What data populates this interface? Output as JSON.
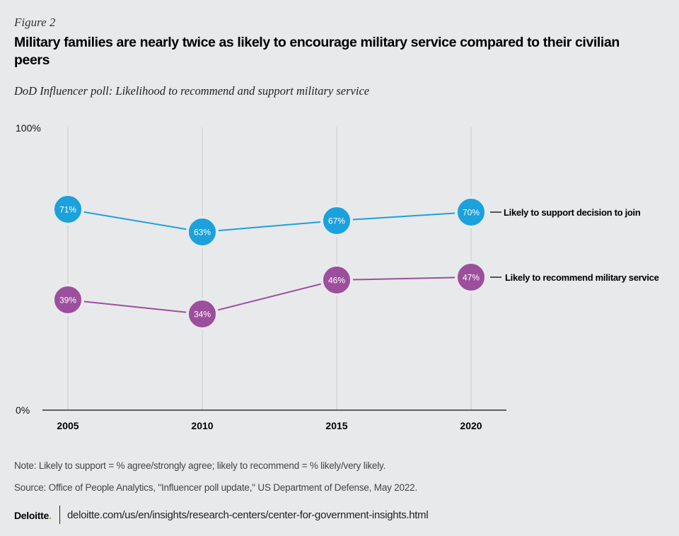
{
  "figure_label": "Figure 2",
  "title": "Military families are nearly twice as likely to encourage military service compared to their civilian peers",
  "subtitle": "DoD Influencer poll: Likelihood to recommend and support military service",
  "colors": {
    "support": "#1ba1dc",
    "recommend": "#9c4f9c",
    "gridline": "#d5d6d8",
    "axis": "#333333"
  },
  "chart_data": {
    "type": "line",
    "title": "Military families are nearly twice as likely to encourage military service compared to their civilian peers",
    "subtitle": "DoD Influencer poll: Likelihood to recommend and support military service",
    "x": [
      "2005",
      "2010",
      "2015",
      "2020"
    ],
    "xlabel": "",
    "ylabel": "",
    "ylim": [
      0,
      100
    ],
    "y_tick_labels": [
      "0%",
      "100%"
    ],
    "grid": "vertical",
    "legend": "right (direct labels)",
    "series": [
      {
        "name": "Likely to support decision to join",
        "values": [
          71,
          63,
          67,
          70
        ],
        "labels": [
          "71%",
          "63%",
          "67%",
          "70%"
        ],
        "color": "#1ba1dc"
      },
      {
        "name": "Likely to recommend military service",
        "values": [
          39,
          34,
          46,
          47
        ],
        "labels": [
          "39%",
          "34%",
          "46%",
          "47%"
        ],
        "color": "#9c4f9c"
      }
    ]
  },
  "note": "Note: Likely to support = % agree/strongly agree; likely to recommend =  % likely/very likely.",
  "source": "Source: Office of People Analytics, \"Influencer poll update,\" US Department of Defense, May 2022.",
  "footer": {
    "logo": "Deloitte",
    "logo_dot": ".",
    "url": "deloitte.com/us/en/insights/research-centers/center-for-government-insights.html"
  }
}
